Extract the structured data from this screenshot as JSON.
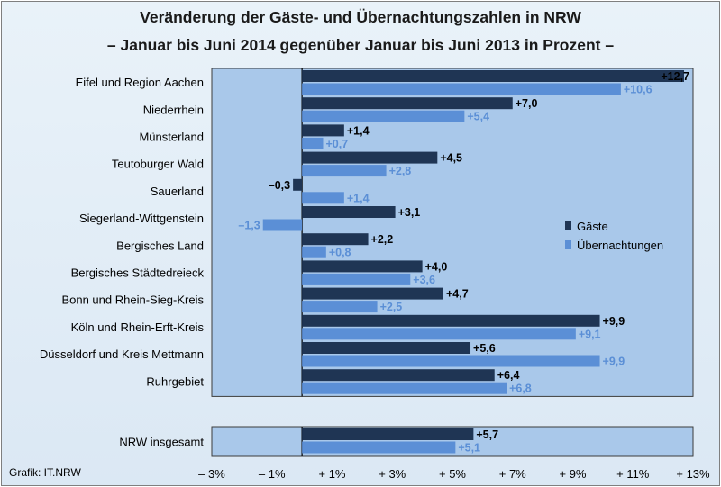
{
  "header": {
    "title": "Veränderung der Gäste- und Übernachtungszahlen in NRW",
    "subtitle": "– Januar bis Juni 2014 gegenüber Januar bis Juni 2013 in Prozent –"
  },
  "credit": "Grafik: IT.NRW",
  "colors": {
    "gaeste": "#1f3554",
    "uebernachtungen": "#5b8fd6",
    "plot_bg": "#a9c8ea",
    "border": "#3c3c3c"
  },
  "chart_data": {
    "type": "bar",
    "orientation": "horizontal",
    "categories": [
      "Eifel und Region Aachen",
      "Niederrhein",
      "Münsterland",
      "Teutoburger Wald",
      "Sauerland",
      "Siegerland-Wittgenstein",
      "Bergisches Land",
      "Bergisches Städtedreieck",
      "Bonn und Rhein-Sieg-Kreis",
      "Köln und  Rhein-Erft-Kreis",
      "Düsseldorf und Kreis Mettmann",
      "Ruhrgebiet"
    ],
    "series": [
      {
        "name": "Gäste",
        "values": [
          12.7,
          7.0,
          1.4,
          4.5,
          -0.3,
          3.1,
          2.2,
          4.0,
          4.7,
          9.9,
          5.6,
          6.4
        ],
        "labels": [
          "+12,7",
          "+7,0",
          "+1,4",
          "+4,5",
          "–0,3",
          "+3,1",
          "+2,2",
          "+4,0",
          "+4,7",
          "+9,9",
          "+5,6",
          "+6,4"
        ]
      },
      {
        "name": "Übernachtungen",
        "values": [
          10.6,
          5.4,
          0.7,
          2.8,
          1.4,
          -1.3,
          0.8,
          3.6,
          2.5,
          9.1,
          9.9,
          6.8
        ],
        "labels": [
          "+10,6",
          "+5,4",
          "+0,7",
          "+2,8",
          "+1,4",
          "–1,3",
          "+0,8",
          "+3,6",
          "+2,5",
          "+9,1",
          "+9,9",
          "+6,8"
        ]
      }
    ],
    "total": {
      "category": "NRW insgesamt",
      "values": [
        5.7,
        5.1
      ],
      "labels": [
        "+5,7",
        "+5,1"
      ]
    },
    "x_ticks": [
      -3,
      -1,
      1,
      3,
      5,
      7,
      9,
      11,
      13
    ],
    "x_tick_labels": [
      "– 3%",
      "– 1%",
      "+ 1%",
      "+ 3%",
      "+ 5%",
      "+ 7%",
      "+ 9%",
      "+ 11%",
      "+ 13%"
    ],
    "xlim": [
      -3,
      13
    ],
    "legend": {
      "position": "right-middle",
      "entries": [
        "Gäste",
        "Übernachtungen"
      ]
    },
    "grid": false
  }
}
